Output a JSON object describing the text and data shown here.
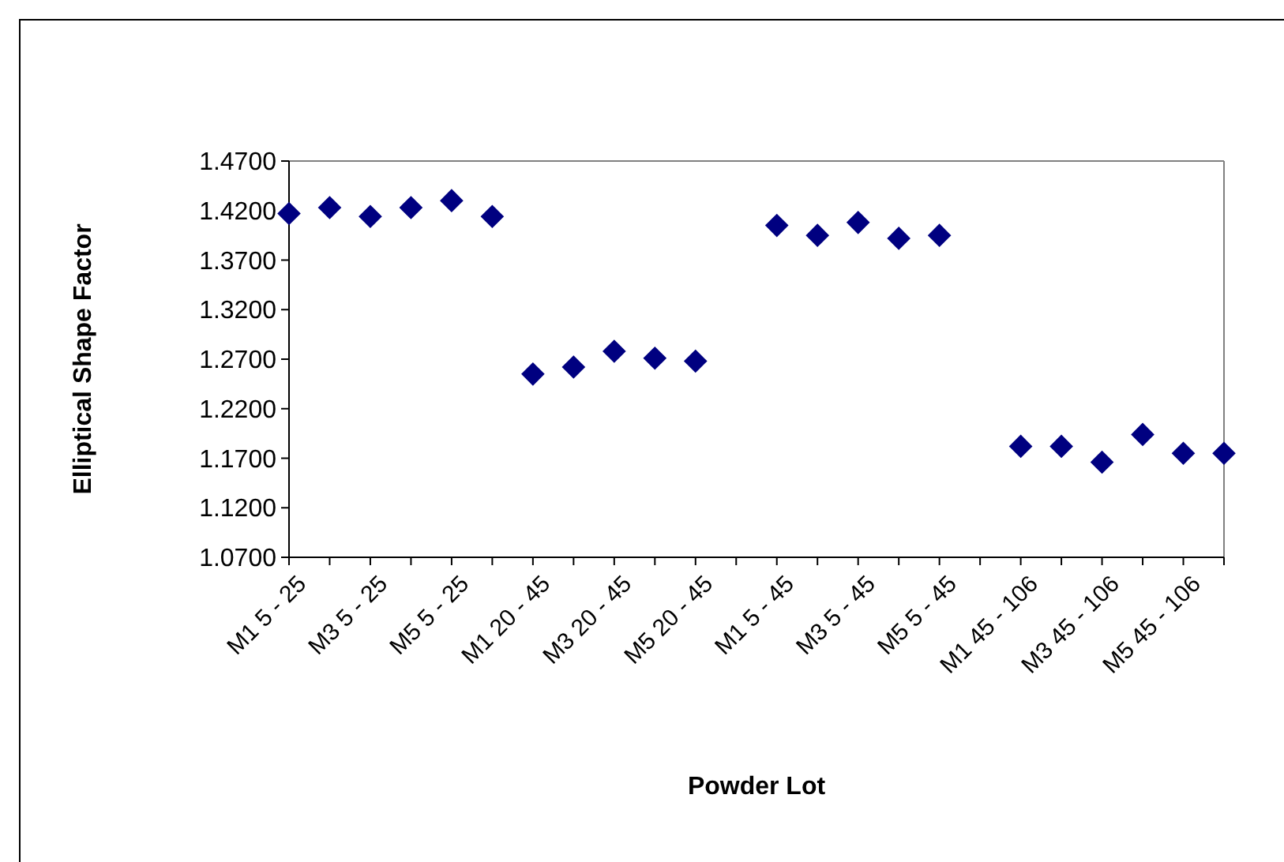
{
  "chart_data": {
    "type": "scatter",
    "xlabel": "Powder Lot",
    "ylabel": "Elliptical Shape Factor",
    "categories": [
      "M1 5 - 25",
      null,
      "M3 5 - 25",
      null,
      "M5 5 - 25",
      null,
      "M1 20 - 45",
      null,
      "M3 20 - 45",
      null,
      "M5 20 - 45",
      null,
      "M1 5 - 45",
      null,
      "M3 5 - 45",
      null,
      "M5 5 - 45",
      null,
      "M1 45 - 106",
      null,
      "M3 45 - 106",
      null,
      "M5 45 - 106",
      null
    ],
    "series": [
      {
        "color": "#000080",
        "values": [
          1.417,
          1.423,
          1.414,
          1.423,
          1.43,
          1.414,
          1.255,
          1.262,
          1.278,
          1.271,
          1.268,
          null,
          1.405,
          1.395,
          1.408,
          1.392,
          1.395,
          null,
          1.182,
          1.182,
          1.166,
          1.194,
          1.175,
          1.175
        ]
      }
    ],
    "marker": "diamond",
    "grid": false,
    "ylim": [
      1.07,
      1.47
    ],
    "yticks": [
      {
        "value": 1.07,
        "label": "1.0700"
      },
      {
        "value": 1.12,
        "label": "1.1200"
      },
      {
        "value": 1.17,
        "label": "1.1700"
      },
      {
        "value": 1.22,
        "label": "1.2200"
      },
      {
        "value": 1.27,
        "label": "1.2700"
      },
      {
        "value": 1.32,
        "label": "1.3200"
      },
      {
        "value": 1.37,
        "label": "1.3700"
      },
      {
        "value": 1.42,
        "label": "1.4200"
      },
      {
        "value": 1.47,
        "label": "1.4700"
      }
    ]
  }
}
